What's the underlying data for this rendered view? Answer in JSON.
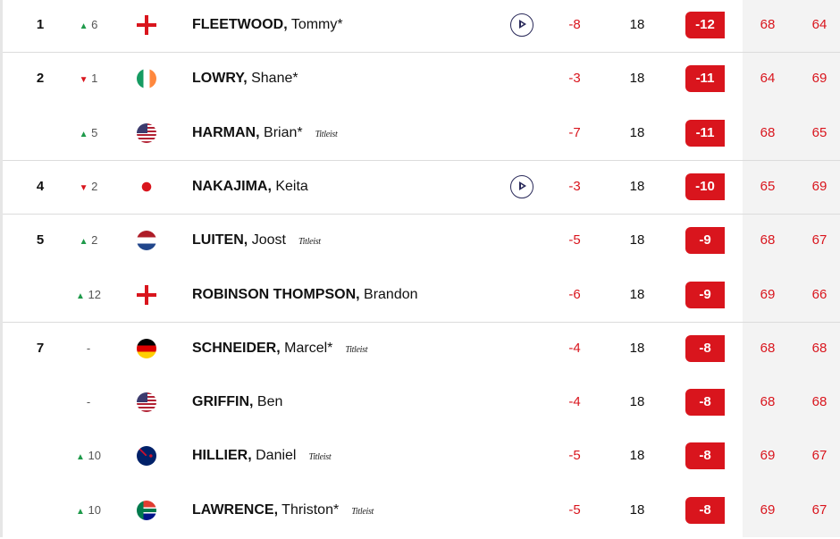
{
  "colors": {
    "accent": "#d9151d",
    "up": "#1e9a4a",
    "down": "#d9151d"
  },
  "players": [
    {
      "pos": "1",
      "move_dir": "up",
      "move": "6",
      "flag": "england",
      "last": "FLEETWOOD",
      "first": "Tommy*",
      "sponsor": "",
      "play": true,
      "today": "-8",
      "thru": "18",
      "total": "-12",
      "r1": "68",
      "r2": "64"
    },
    {
      "pos": "2",
      "move_dir": "down",
      "move": "1",
      "flag": "ireland",
      "last": "LOWRY",
      "first": "Shane*",
      "sponsor": "",
      "play": false,
      "today": "-3",
      "thru": "18",
      "total": "-11",
      "r1": "64",
      "r2": "69"
    },
    {
      "pos": "",
      "move_dir": "up",
      "move": "5",
      "flag": "usa",
      "last": "HARMAN",
      "first": "Brian*",
      "sponsor": "Titleist",
      "play": false,
      "today": "-7",
      "thru": "18",
      "total": "-11",
      "r1": "68",
      "r2": "65"
    },
    {
      "pos": "4",
      "move_dir": "down",
      "move": "2",
      "flag": "japan",
      "last": "NAKAJIMA",
      "first": "Keita",
      "sponsor": "",
      "play": true,
      "today": "-3",
      "thru": "18",
      "total": "-10",
      "r1": "65",
      "r2": "69"
    },
    {
      "pos": "5",
      "move_dir": "up",
      "move": "2",
      "flag": "netherlands",
      "last": "LUITEN",
      "first": "Joost",
      "sponsor": "Titleist",
      "play": false,
      "today": "-5",
      "thru": "18",
      "total": "-9",
      "r1": "68",
      "r2": "67"
    },
    {
      "pos": "",
      "move_dir": "up",
      "move": "12",
      "flag": "england",
      "last": "ROBINSON THOMPSON",
      "first": "Brandon",
      "sponsor": "",
      "play": false,
      "today": "-6",
      "thru": "18",
      "total": "-9",
      "r1": "69",
      "r2": "66"
    },
    {
      "pos": "7",
      "move_dir": "none",
      "move": "-",
      "flag": "germany",
      "last": "SCHNEIDER",
      "first": "Marcel*",
      "sponsor": "Titleist",
      "play": false,
      "today": "-4",
      "thru": "18",
      "total": "-8",
      "r1": "68",
      "r2": "68"
    },
    {
      "pos": "",
      "move_dir": "none",
      "move": "-",
      "flag": "usa",
      "last": "GRIFFIN",
      "first": "Ben",
      "sponsor": "",
      "play": false,
      "today": "-4",
      "thru": "18",
      "total": "-8",
      "r1": "68",
      "r2": "68"
    },
    {
      "pos": "",
      "move_dir": "up",
      "move": "10",
      "flag": "new-zealand",
      "last": "HILLIER",
      "first": "Daniel",
      "sponsor": "Titleist",
      "play": false,
      "today": "-5",
      "thru": "18",
      "total": "-8",
      "r1": "69",
      "r2": "67"
    },
    {
      "pos": "",
      "move_dir": "up",
      "move": "10",
      "flag": "south-africa",
      "last": "LAWRENCE",
      "first": "Thriston*",
      "sponsor": "Titleist",
      "play": false,
      "today": "-5",
      "thru": "18",
      "total": "-8",
      "r1": "69",
      "r2": "67"
    }
  ]
}
